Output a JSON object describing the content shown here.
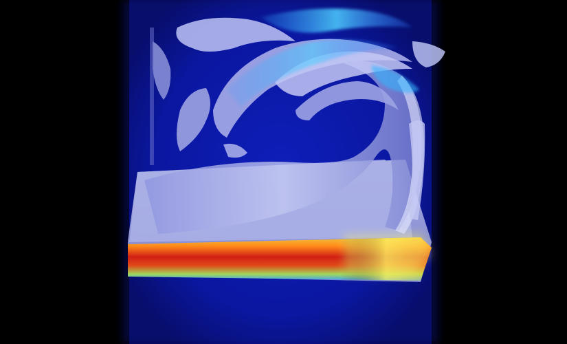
{
  "scene": {
    "background_color": "#000000",
    "volume_color": "#0a1aa8",
    "isosurface_color": "#a9aee6",
    "colormap": [
      "#1e3cff",
      "#19b4ff",
      "#7cf08a",
      "#f4e44a",
      "#ff9a1a",
      "#e0231a",
      "#9a1010"
    ]
  }
}
